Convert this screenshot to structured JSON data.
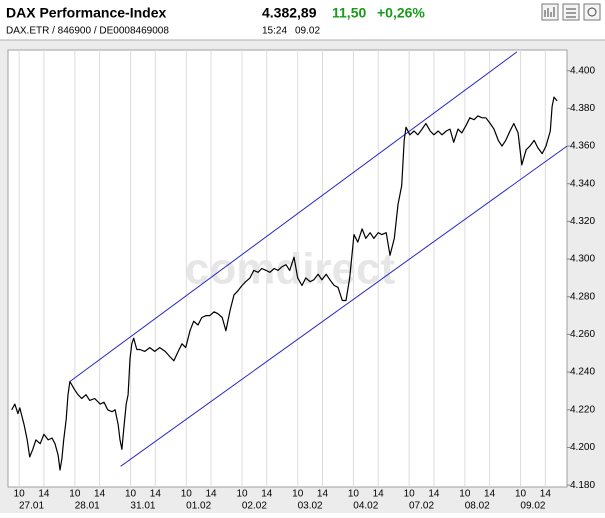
{
  "header": {
    "title": "DAX Performance-Index",
    "price": "4.382,89",
    "change": "11,50",
    "change_pct": "+0,26%",
    "subtitle": "DAX.ETR / 846900 / DE0008469008",
    "time": "15:24",
    "date": "09.02"
  },
  "chart_data": {
    "type": "line",
    "watermark": "comdirect",
    "grid": true,
    "xlim": [
      -0.8,
      89.5
    ],
    "ylim": [
      4179,
      4411
    ],
    "yticks": [
      {
        "value": 4180,
        "label": "4.180"
      },
      {
        "value": 4200,
        "label": "4.200"
      },
      {
        "value": 4220,
        "label": "4.220"
      },
      {
        "value": 4240,
        "label": "4.240"
      },
      {
        "value": 4260,
        "label": "4.260"
      },
      {
        "value": 4280,
        "label": "4.280"
      },
      {
        "value": 4300,
        "label": "4.300"
      },
      {
        "value": 4320,
        "label": "4.320"
      },
      {
        "value": 4340,
        "label": "4.340"
      },
      {
        "value": 4360,
        "label": "4.360"
      },
      {
        "value": 4380,
        "label": "4.380"
      },
      {
        "value": 4400,
        "label": "4.400"
      }
    ],
    "xticks": [
      {
        "value": 1,
        "label": "10"
      },
      {
        "value": 5,
        "label": "14"
      },
      {
        "value": 10,
        "label": "10"
      },
      {
        "value": 14,
        "label": "14"
      },
      {
        "value": 19,
        "label": "10"
      },
      {
        "value": 23,
        "label": "14"
      },
      {
        "value": 28,
        "label": "10"
      },
      {
        "value": 32,
        "label": "14"
      },
      {
        "value": 37,
        "label": "10"
      },
      {
        "value": 41,
        "label": "14"
      },
      {
        "value": 46,
        "label": "10"
      },
      {
        "value": 50,
        "label": "14"
      },
      {
        "value": 55,
        "label": "10"
      },
      {
        "value": 59,
        "label": "14"
      },
      {
        "value": 64,
        "label": "10"
      },
      {
        "value": 68,
        "label": "14"
      },
      {
        "value": 73,
        "label": "10"
      },
      {
        "value": 77,
        "label": "14"
      },
      {
        "value": 82,
        "label": "10"
      },
      {
        "value": 86,
        "label": "14"
      }
    ],
    "xday_labels": [
      {
        "value": 3,
        "label": "27.01"
      },
      {
        "value": 12,
        "label": "28.01"
      },
      {
        "value": 21,
        "label": "31.01"
      },
      {
        "value": 30,
        "label": "01.02"
      },
      {
        "value": 39,
        "label": "02.02"
      },
      {
        "value": 48,
        "label": "03.02"
      },
      {
        "value": 57,
        "label": "04.02"
      },
      {
        "value": 66,
        "label": "07.02"
      },
      {
        "value": 75,
        "label": "08.02"
      },
      {
        "value": 84,
        "label": "09.02"
      }
    ],
    "series": [
      {
        "color": "#000000",
        "x": [
          -0.2,
          0.3,
          0.8,
          1.1,
          1.8,
          2.3,
          2.7,
          3.2,
          3.7,
          4.4,
          5.0,
          5.7,
          6.3,
          6.8,
          7.3,
          7.6,
          7.9,
          8.2,
          8.6,
          8.9,
          9.2,
          9.9,
          10.5,
          11.1,
          11.8,
          12.4,
          13.2,
          14.1,
          14.7,
          15.3,
          16.0,
          16.5,
          17.0,
          17.3,
          17.6,
          17.9,
          18.3,
          18.6,
          18.9,
          19.2,
          19.5,
          20.0,
          20.5,
          21.3,
          22.1,
          22.9,
          23.7,
          24.6,
          25.4,
          26.0,
          26.7,
          27.3,
          27.9,
          28.6,
          29.2,
          29.9,
          30.5,
          31.2,
          31.8,
          32.5,
          33.1,
          33.8,
          34.4,
          35.1,
          35.7,
          36.3,
          37.0,
          37.6,
          38.3,
          38.9,
          39.6,
          40.2,
          40.9,
          41.5,
          42.2,
          42.8,
          43.5,
          44.1,
          44.7,
          45.4,
          46.0,
          46.7,
          47.3,
          48.0,
          48.6,
          49.3,
          49.9,
          50.6,
          51.2,
          51.9,
          52.5,
          53.2,
          53.8,
          54.4,
          55.1,
          55.7,
          56.4,
          57.0,
          57.7,
          58.3,
          59.0,
          59.6,
          60.3,
          60.9,
          61.6,
          62.2,
          62.8,
          63.2,
          63.5,
          64.1,
          64.8,
          65.4,
          66.1,
          66.7,
          67.4,
          68.0,
          68.7,
          69.3,
          70.0,
          70.6,
          71.2,
          71.9,
          72.5,
          73.2,
          73.8,
          74.5,
          75.1,
          75.8,
          76.4,
          77.1,
          77.7,
          78.4,
          79.0,
          79.6,
          80.3,
          80.9,
          81.6,
          82.2,
          82.9,
          83.5,
          84.2,
          84.8,
          85.5,
          86.1,
          86.8,
          87.1,
          87.4,
          87.9
        ],
        "values": [
          4220,
          4223,
          4218,
          4221,
          4212,
          4204,
          4195,
          4199,
          4204,
          4202,
          4207,
          4204,
          4205,
          4202,
          4196,
          4188,
          4194,
          4204,
          4215,
          4228,
          4235,
          4231,
          4228,
          4226,
          4228,
          4225,
          4226,
          4223,
          4224,
          4220,
          4219,
          4220,
          4212,
          4204,
          4199,
          4210,
          4223,
          4228,
          4247,
          4255,
          4258,
          4252,
          4252,
          4251,
          4253,
          4251,
          4253,
          4251,
          4248,
          4246,
          4251,
          4255,
          4253,
          4262,
          4267,
          4265,
          4269,
          4270,
          4270,
          4272,
          4271,
          4269,
          4262,
          4273,
          4281,
          4283,
          4286,
          4288,
          4290,
          4294,
          4293,
          4295,
          4294,
          4293,
          4295,
          4294,
          4296,
          4297,
          4294,
          4301,
          4290,
          4286,
          4290,
          4288,
          4289,
          4292,
          4289,
          4292,
          4289,
          4286,
          4285,
          4278,
          4278,
          4290,
          4313,
          4309,
          4316,
          4311,
          4314,
          4311,
          4314,
          4313,
          4314,
          4302,
          4311,
          4329,
          4339,
          4363,
          4370,
          4366,
          4368,
          4366,
          4369,
          4372,
          4368,
          4366,
          4368,
          4366,
          4368,
          4369,
          4362,
          4369,
          4367,
          4371,
          4375,
          4374,
          4376,
          4375,
          4375,
          4372,
          4369,
          4363,
          4360,
          4363,
          4368,
          4372,
          4367,
          4350,
          4358,
          4360,
          4363,
          4359,
          4356,
          4360,
          4368,
          4381,
          4386,
          4384
        ]
      }
    ],
    "trend_lines": [
      {
        "color": "#2828c8",
        "x": [
          9.2,
          81.4
        ],
        "values": [
          4235,
          4410
        ]
      },
      {
        "color": "#2828c8",
        "x": [
          17.4,
          89.5
        ],
        "values": [
          4190,
          4360
        ]
      }
    ]
  }
}
